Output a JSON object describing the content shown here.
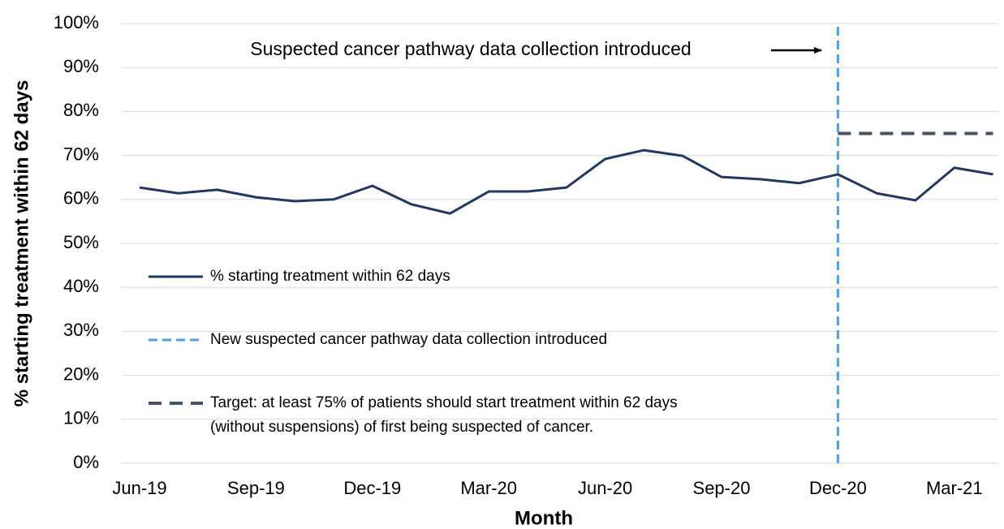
{
  "chart_data": {
    "type": "line",
    "annotation": "Suspected cancer pathway data collection introduced",
    "xlabel": "Month",
    "ylabel": "% starting treatment within 62 days",
    "categories": [
      "Jun-19",
      null,
      null,
      "Sep-19",
      null,
      null,
      "Dec-19",
      null,
      null,
      "Mar-20",
      null,
      null,
      "Jun-20",
      null,
      null,
      "Sep-20",
      null,
      null,
      "Dec-20",
      null,
      null,
      "Mar-21",
      null
    ],
    "series": [
      {
        "name": "% starting treatment within 62 days",
        "color": "#1f3864",
        "style": "solid",
        "values": [
          62.7,
          61.4,
          62.2,
          60.5,
          59.6,
          60.0,
          63.1,
          58.9,
          56.8,
          61.8,
          61.8,
          62.7,
          69.2,
          71.2,
          69.9,
          65.1,
          64.6,
          63.7,
          65.7,
          61.4,
          59.8,
          67.2,
          65.7
        ]
      },
      {
        "name": "Target: at least 75% of patients should start treatment within 62 days\n(without suspensions) of first being suspected of cancer.",
        "color": "#44546a",
        "style": "dashed",
        "values": [
          null,
          null,
          null,
          null,
          null,
          null,
          null,
          null,
          null,
          null,
          null,
          null,
          null,
          null,
          null,
          null,
          null,
          null,
          75,
          75,
          75,
          75,
          75
        ]
      }
    ],
    "vline": {
      "name": "New suspected cancer pathway data collection introduced",
      "color": "#4a9ff5",
      "x": "Dec-20"
    },
    "ylim": [
      0,
      100
    ],
    "yticks": [
      {
        "value": 0,
        "label": "0%"
      },
      {
        "value": 10,
        "label": "10%"
      },
      {
        "value": 20,
        "label": "20%"
      },
      {
        "value": 30,
        "label": "30%"
      },
      {
        "value": 40,
        "label": "40%"
      },
      {
        "value": 50,
        "label": "50%"
      },
      {
        "value": 60,
        "label": "60%"
      },
      {
        "value": 70,
        "label": "70%"
      },
      {
        "value": 80,
        "label": "80%"
      },
      {
        "value": 90,
        "label": "90%"
      },
      {
        "value": 100,
        "label": "100%"
      }
    ],
    "grid": true
  }
}
